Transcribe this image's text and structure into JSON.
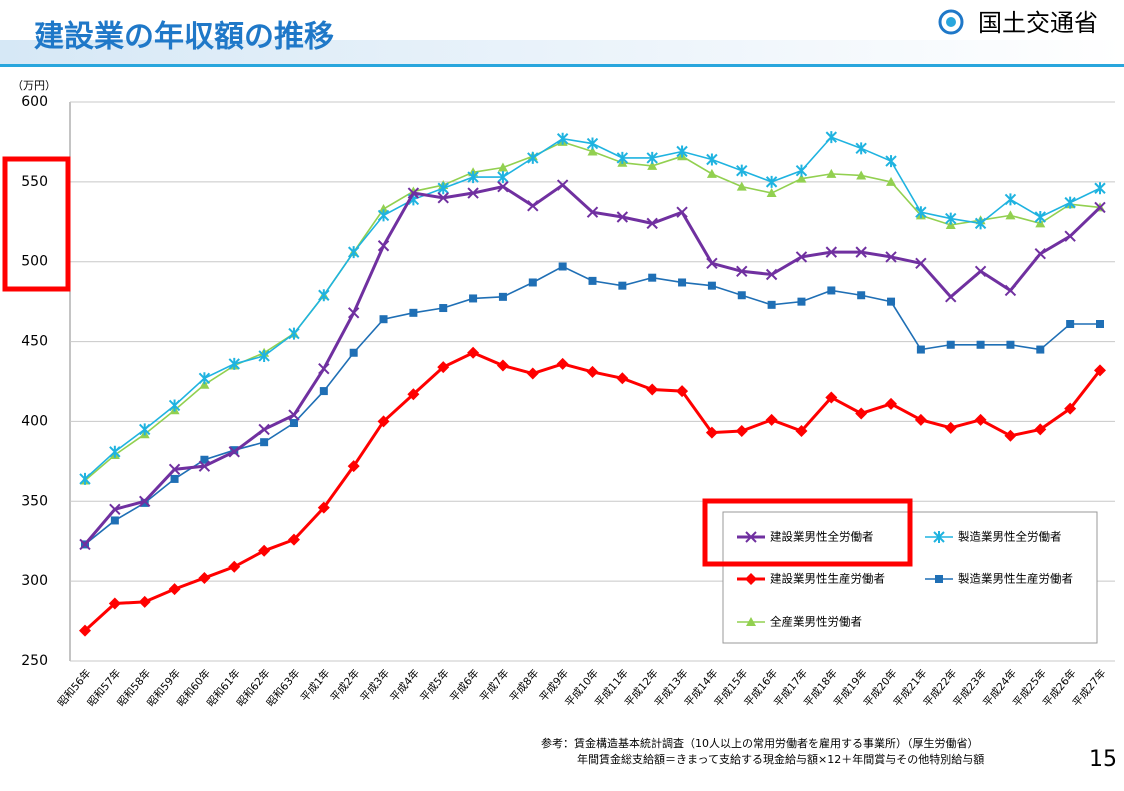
{
  "chart_data": {
    "type": "line",
    "title": "建設業の年収額の推移",
    "organization": "国土交通省",
    "y_label": "（万円）",
    "page_number": "15",
    "notes": [
      "参考：賃金構造基本統計調査（10人以上の常用労働者を雇用する事業所）（厚生労働省）",
      "年間賃金総支給額＝きまって支給する現金給与額×12＋年間賞与その他特別給与額"
    ],
    "categories": [
      "昭和56年",
      "昭和57年",
      "昭和58年",
      "昭和59年",
      "昭和60年",
      "昭和61年",
      "昭和62年",
      "昭和63年",
      "平成1年",
      "平成2年",
      "平成3年",
      "平成4年",
      "平成5年",
      "平成6年",
      "平成7年",
      "平成8年",
      "平成9年",
      "平成10年",
      "平成11年",
      "平成12年",
      "平成13年",
      "平成14年",
      "平成15年",
      "平成16年",
      "平成17年",
      "平成18年",
      "平成19年",
      "平成20年",
      "平成21年",
      "平成22年",
      "平成23年",
      "平成24年",
      "平成25年",
      "平成26年",
      "平成27年"
    ],
    "series": [
      {
        "name": "建設業男性全労働者",
        "color": "#7030a0",
        "marker": "x",
        "values": [
          323,
          345,
          350,
          370,
          372,
          381,
          395,
          404,
          433,
          468,
          510,
          543,
          540,
          543,
          547,
          535,
          548,
          531,
          528,
          524,
          531,
          499,
          494,
          492,
          503,
          506,
          506,
          503,
          499,
          478,
          494,
          482,
          505,
          516,
          534
        ]
      },
      {
        "name": "製造業男性全労働者",
        "color": "#1fb3e0",
        "marker": "asterisk",
        "values": [
          364,
          381,
          395,
          410,
          427,
          436,
          441,
          455,
          479,
          506,
          529,
          539,
          546,
          553,
          553,
          565,
          577,
          574,
          565,
          565,
          569,
          564,
          557,
          550,
          557,
          578,
          571,
          563,
          531,
          527,
          524,
          539,
          528,
          537,
          546
        ]
      },
      {
        "name": "建設業男性生産労働者",
        "color": "#ff0000",
        "marker": "diamond",
        "values": [
          269,
          286,
          287,
          295,
          302,
          309,
          319,
          326,
          346,
          372,
          400,
          417,
          434,
          443,
          435,
          430,
          436,
          431,
          427,
          420,
          419,
          393,
          394,
          401,
          394,
          415,
          405,
          411,
          401,
          396,
          401,
          391,
          395,
          408,
          432
        ]
      },
      {
        "name": "製造業男性生産労働者",
        "color": "#1f6fb5",
        "marker": "square",
        "values": [
          323,
          338,
          349,
          364,
          376,
          382,
          387,
          399,
          419,
          443,
          464,
          468,
          471,
          477,
          478,
          487,
          497,
          488,
          485,
          490,
          487,
          485,
          479,
          473,
          475,
          482,
          479,
          475,
          445,
          448,
          448,
          448,
          445,
          461,
          461
        ]
      },
      {
        "name": "全産業男性労働者",
        "color": "#92d050",
        "marker": "triangle",
        "values": [
          363,
          379,
          392,
          407,
          423,
          435,
          443,
          455,
          479,
          506,
          533,
          544,
          548,
          556,
          559,
          566,
          575,
          569,
          562,
          560,
          566,
          555,
          547,
          543,
          552,
          555,
          554,
          550,
          529,
          523,
          526,
          529,
          524,
          536,
          534
        ]
      }
    ],
    "ylim": [
      250,
      600
    ],
    "yticks": [
      250,
      300,
      350,
      400,
      450,
      500,
      550,
      600
    ],
    "grid": true
  }
}
